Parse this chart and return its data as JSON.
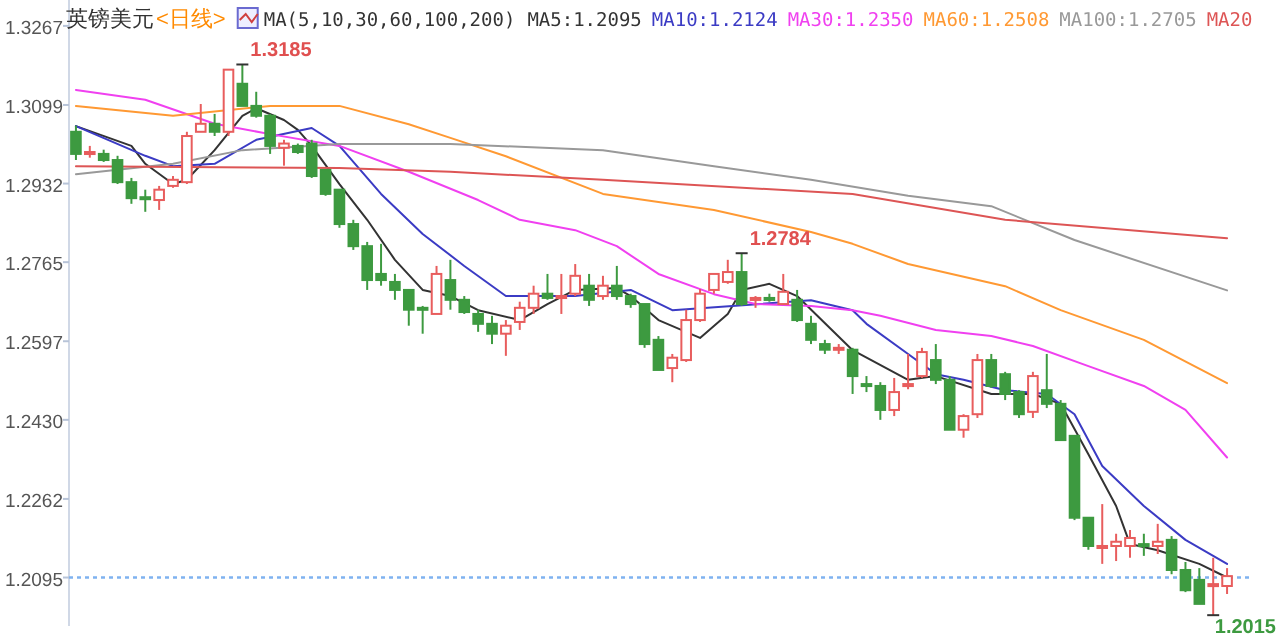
{
  "chart_data": {
    "type": "candlestick",
    "title": "英镑美元",
    "subtitle": "<日线>",
    "annotations": [
      "MA(5,10,30,60,100,200)",
      "1.3185",
      "1.2784",
      "1.2015"
    ],
    "categories": [
      null,
      null,
      null,
      null,
      null,
      null,
      null,
      null,
      null,
      null,
      null,
      null,
      null,
      null,
      null,
      null,
      null,
      null,
      null,
      null,
      null,
      null,
      null,
      null,
      null,
      null,
      null,
      null,
      null,
      null,
      null,
      null,
      null,
      null,
      null,
      null,
      null,
      null,
      null,
      null,
      null,
      null,
      null,
      null,
      null,
      null,
      null,
      null,
      null,
      null,
      null,
      null,
      null,
      null,
      null,
      null,
      null,
      null,
      null,
      null,
      null,
      null,
      null,
      null,
      null,
      null,
      null,
      null,
      null,
      null,
      null,
      null,
      null,
      null,
      null,
      null,
      null,
      null,
      null,
      null,
      null,
      null,
      null,
      null
    ],
    "ohlc": [
      [
        1.3042,
        1.3055,
        1.2982,
        1.2995
      ],
      [
        1.2995,
        1.3012,
        1.2987,
        1.2999
      ],
      [
        1.2995,
        1.3004,
        1.2978,
        1.2982
      ],
      [
        1.2982,
        1.2991,
        1.2931,
        1.2935
      ],
      [
        1.2935,
        1.2944,
        1.2889,
        1.2901
      ],
      [
        1.2903,
        1.2919,
        1.2872,
        1.2899
      ],
      [
        1.2897,
        1.2927,
        1.2876,
        1.2919
      ],
      [
        1.2927,
        1.2948,
        1.2923,
        1.294
      ],
      [
        1.2935,
        1.3042,
        1.2931,
        1.3033
      ],
      [
        1.3042,
        1.3101,
        1.3042,
        1.3059
      ],
      [
        1.3059,
        1.308,
        1.3033,
        1.3042
      ],
      [
        1.3042,
        1.3174,
        1.3033,
        1.3174
      ],
      [
        1.3144,
        1.3185,
        1.3097,
        1.3097
      ],
      [
        1.3097,
        1.3127,
        1.3072,
        1.3076
      ],
      [
        1.3076,
        1.308,
        1.2995,
        1.3012
      ],
      [
        1.3008,
        1.3025,
        1.297,
        1.3017
      ],
      [
        1.3012,
        1.3017,
        1.2995,
        1.2999
      ],
      [
        1.3017,
        1.3025,
        1.2944,
        1.2948
      ],
      [
        1.2961,
        1.2961,
        1.2906,
        1.291
      ],
      [
        1.2919,
        1.2919,
        1.2838,
        1.2846
      ],
      [
        1.2846,
        1.2855,
        1.2791,
        1.2799
      ],
      [
        1.2799,
        1.2808,
        1.2706,
        1.2727
      ],
      [
        1.274,
        1.2804,
        1.2715,
        1.2727
      ],
      [
        1.2723,
        1.274,
        1.2685,
        1.2706
      ],
      [
        1.2706,
        1.2706,
        1.263,
        1.2664
      ],
      [
        1.2668,
        1.2672,
        1.2613,
        1.2664
      ],
      [
        1.2655,
        1.2757,
        1.2655,
        1.274
      ],
      [
        1.2727,
        1.277,
        1.2664,
        1.2685
      ],
      [
        1.2685,
        1.2693,
        1.2655,
        1.2659
      ],
      [
        1.2655,
        1.2664,
        1.2617,
        1.2634
      ],
      [
        1.2634,
        1.2651,
        1.2591,
        1.2613
      ],
      [
        1.2613,
        1.2642,
        1.2566,
        1.263
      ],
      [
        1.2638,
        1.2681,
        1.2621,
        1.2668
      ],
      [
        1.2668,
        1.2715,
        1.2655,
        1.2698
      ],
      [
        1.2698,
        1.274,
        1.2685,
        1.2689
      ],
      [
        1.2689,
        1.274,
        1.2655,
        1.2693
      ],
      [
        1.2698,
        1.2761,
        1.2693,
        1.2736
      ],
      [
        1.2715,
        1.274,
        1.2672,
        1.2685
      ],
      [
        1.2693,
        1.2736,
        1.2685,
        1.2715
      ],
      [
        1.2715,
        1.2757,
        1.2685,
        1.2693
      ],
      [
        1.2693,
        1.2698,
        1.2668,
        1.2676
      ],
      [
        1.2676,
        1.2676,
        1.2583,
        1.2591
      ],
      [
        1.26,
        1.2608,
        1.2536,
        1.2536
      ],
      [
        1.254,
        1.257,
        1.251,
        1.2562
      ],
      [
        1.2557,
        1.2664,
        1.2553,
        1.2642
      ],
      [
        1.2642,
        1.2708,
        1.2638,
        1.2698
      ],
      [
        1.2706,
        1.274,
        1.2698,
        1.274
      ],
      [
        1.2723,
        1.277,
        1.2719,
        1.2744
      ],
      [
        1.2744,
        1.2784,
        1.2672,
        1.2676
      ],
      [
        1.2685,
        1.2693,
        1.2668,
        1.2689
      ],
      [
        1.2689,
        1.2698,
        1.2681,
        1.2685
      ],
      [
        1.2676,
        1.274,
        1.2676,
        1.2702
      ],
      [
        1.2685,
        1.2706,
        1.2638,
        1.2642
      ],
      [
        1.2634,
        1.2651,
        1.2591,
        1.26
      ],
      [
        1.2591,
        1.26,
        1.257,
        1.2579
      ],
      [
        1.2579,
        1.2591,
        1.257,
        1.2583
      ],
      [
        1.2579,
        1.2583,
        1.2485,
        1.2523
      ],
      [
        1.2506,
        1.2523,
        1.2489,
        1.2502
      ],
      [
        1.2502,
        1.251,
        1.243,
        1.2451
      ],
      [
        1.2451,
        1.2519,
        1.2438,
        1.2489
      ],
      [
        1.2502,
        1.257,
        1.2495,
        1.2506
      ],
      [
        1.2523,
        1.2583,
        1.2519,
        1.2574
      ],
      [
        1.2557,
        1.2591,
        1.2506,
        1.2515
      ],
      [
        1.2515,
        1.2523,
        1.2409,
        1.2409
      ],
      [
        1.2409,
        1.2442,
        1.2392,
        1.2438
      ],
      [
        1.2442,
        1.257,
        1.2434,
        1.2557
      ],
      [
        1.2557,
        1.257,
        1.2498,
        1.2502
      ],
      [
        1.2527,
        1.2532,
        1.2472,
        1.2485
      ],
      [
        1.2489,
        1.2493,
        1.2434,
        1.2442
      ],
      [
        1.2447,
        1.2532,
        1.2434,
        1.2523
      ],
      [
        1.2493,
        1.257,
        1.2455,
        1.2464
      ],
      [
        1.2464,
        1.2472,
        1.2387,
        1.2387
      ],
      [
        1.2396,
        1.2396,
        1.2217,
        1.2222
      ],
      [
        1.2222,
        1.2222,
        1.2154,
        1.2162
      ],
      [
        1.2158,
        1.2251,
        1.2124,
        1.2162
      ],
      [
        1.2162,
        1.2188,
        1.213,
        1.2171
      ],
      [
        1.2162,
        1.2196,
        1.2137,
        1.2179
      ],
      [
        1.2166,
        1.2188,
        1.2141,
        1.2162
      ],
      [
        1.2162,
        1.2209,
        1.2145,
        1.2171
      ],
      [
        1.2175,
        1.2183,
        1.2102,
        1.2111
      ],
      [
        1.2111,
        1.2128,
        1.2064,
        1.2068
      ],
      [
        1.209,
        1.2115,
        1.2039,
        1.2039
      ],
      [
        1.2077,
        1.2137,
        1.2015,
        1.2081
      ],
      [
        1.2077,
        1.2115,
        1.206,
        1.2098
      ]
    ],
    "colors": [
      "#3d9a40",
      "#e85d5d",
      "#3d9a40",
      "#3d9a40",
      "#3d9a40",
      "#3d9a40",
      "#e85d5d",
      "#e85d5d",
      "#e85d5d",
      "#e85d5d",
      "#3d9a40",
      "#e85d5d",
      "#3d9a40",
      "#3d9a40",
      "#3d9a40",
      "#e85d5d",
      "#3d9a40",
      "#3d9a40",
      "#3d9a40",
      "#3d9a40",
      "#3d9a40",
      "#3d9a40",
      "#3d9a40",
      "#3d9a40",
      "#3d9a40",
      "#3d9a40",
      "#e85d5d",
      "#3d9a40",
      "#3d9a40",
      "#3d9a40",
      "#3d9a40",
      "#e85d5d",
      "#e85d5d",
      "#e85d5d",
      "#3d9a40",
      "#e85d5d",
      "#e85d5d",
      "#3d9a40",
      "#e85d5d",
      "#3d9a40",
      "#3d9a40",
      "#3d9a40",
      "#3d9a40",
      "#e85d5d",
      "#e85d5d",
      "#e85d5d",
      "#e85d5d",
      "#e85d5d",
      "#3d9a40",
      "#e85d5d",
      "#3d9a40",
      "#e85d5d",
      "#3d9a40",
      "#3d9a40",
      "#3d9a40",
      "#e85d5d",
      "#3d9a40",
      "#3d9a40",
      "#3d9a40",
      "#e85d5d",
      "#e85d5d",
      "#e85d5d",
      "#3d9a40",
      "#3d9a40",
      "#e85d5d",
      "#e85d5d",
      "#3d9a40",
      "#3d9a40",
      "#3d9a40",
      "#e85d5d",
      "#3d9a40",
      "#3d9a40",
      "#3d9a40",
      "#3d9a40",
      "#e85d5d",
      "#e85d5d",
      "#e85d5d",
      "#3d9a40",
      "#e85d5d",
      "#3d9a40",
      "#3d9a40",
      "#3d9a40",
      "#e85d5d",
      "#e85d5d"
    ],
    "series": [
      {
        "name": "MA5:1.2095",
        "type": "line",
        "color": "#333333",
        "values": [
          1.3054,
          null,
          null,
          null,
          1.3012,
          1.2974,
          null,
          1.2931,
          1.294,
          null,
          1.3003,
          null,
          1.3076,
          1.3092,
          null,
          1.3067,
          1.3046,
          1.3012,
          null,
          1.2931,
          null,
          1.2855,
          null,
          1.277,
          null,
          1.2706,
          null,
          1.2693,
          null,
          1.2663,
          null,
          null,
          1.2642,
          null,
          1.2676,
          null,
          1.2706,
          null,
          null,
          1.271,
          1.2693,
          null,
          1.2642,
          null,
          null,
          1.2604,
          null,
          1.2655,
          1.2706,
          null,
          1.2719,
          null,
          1.2693,
          null,
          null,
          null,
          1.2578,
          null,
          null,
          null,
          1.2515,
          null,
          1.2523,
          null,
          null,
          null,
          1.2485,
          null,
          null,
          1.2485,
          null,
          1.2464,
          null,
          1.2357,
          null,
          1.2247,
          1.2166,
          null,
          1.2153,
          null,
          null,
          1.2124,
          null,
          1.2095
        ]
      },
      {
        "name": "MA10:1.2124",
        "type": "line",
        "color": "#3b3bc4",
        "values": [
          1.3054,
          null,
          null,
          null,
          null,
          1.2991,
          null,
          1.2969,
          null,
          null,
          1.2974,
          null,
          null,
          1.3025,
          null,
          null,
          null,
          1.305,
          null,
          1.3012,
          null,
          null,
          1.291,
          null,
          null,
          1.2825,
          null,
          null,
          1.2757,
          null,
          null,
          1.2693,
          null,
          null,
          null,
          null,
          1.2693,
          null,
          null,
          null,
          1.2706,
          null,
          null,
          1.2663,
          null,
          null,
          null,
          null,
          null,
          null,
          null,
          null,
          null,
          1.2684,
          null,
          null,
          1.2663,
          1.2634,
          null,
          null,
          1.257,
          null,
          1.2527,
          null,
          1.2515,
          null,
          null,
          1.2493,
          null,
          null,
          1.2485,
          null,
          1.2442,
          null,
          1.2332,
          null,
          null,
          1.2247,
          null,
          null,
          1.2175,
          null,
          1.2141,
          1.2124
        ]
      },
      {
        "name": "MA30:1.2350",
        "type": "line",
        "color": "#f040f0",
        "values": [
          1.3131,
          null,
          null,
          null,
          null,
          1.311,
          null,
          null,
          null,
          null,
          1.3059,
          null,
          null,
          null,
          1.3037,
          null,
          null,
          null,
          null,
          1.3012,
          null,
          null,
          null,
          null,
          1.2957,
          null,
          null,
          null,
          null,
          1.2897,
          null,
          null,
          1.2855,
          null,
          null,
          null,
          1.2833,
          null,
          null,
          1.2799,
          null,
          null,
          1.274,
          null,
          null,
          null,
          1.2697,
          null,
          null,
          1.2676,
          null,
          null,
          null,
          1.2672,
          null,
          null,
          1.2663,
          null,
          1.2651,
          null,
          null,
          null,
          1.2621,
          null,
          null,
          null,
          1.2608,
          null,
          null,
          1.2587,
          null,
          null,
          null,
          1.2544,
          null,
          null,
          null,
          1.2502,
          null,
          null,
          1.2451,
          null,
          null,
          1.235
        ]
      },
      {
        "name": "MA60:1.2508",
        "type": "line",
        "color": "#ff9933",
        "values": [
          1.3097,
          null,
          null,
          null,
          null,
          null,
          null,
          1.3076,
          null,
          null,
          null,
          null,
          null,
          null,
          1.3097,
          null,
          null,
          null,
          null,
          1.3097,
          null,
          null,
          null,
          null,
          1.3058,
          null,
          null,
          1.3029,
          null,
          null,
          null,
          1.299,
          null,
          null,
          null,
          null,
          null,
          null,
          1.291,
          null,
          null,
          null,
          null,
          null,
          null,
          null,
          1.2876,
          null,
          null,
          null,
          null,
          null,
          null,
          1.2829,
          null,
          null,
          1.2804,
          null,
          null,
          null,
          1.2761,
          null,
          null,
          null,
          null,
          null,
          null,
          1.2714,
          null,
          null,
          null,
          1.2663,
          null,
          null,
          null,
          null,
          null,
          1.26,
          null,
          null,
          null,
          null,
          null,
          1.2508
        ]
      },
      {
        "name": "MA100:1.2705",
        "type": "line",
        "color": "#999999",
        "values": [
          1.2952,
          null,
          null,
          null,
          null,
          null,
          null,
          1.2974,
          null,
          null,
          null,
          null,
          1.3003,
          null,
          null,
          null,
          null,
          null,
          null,
          1.3016,
          null,
          null,
          null,
          null,
          null,
          null,
          null,
          1.3016,
          null,
          null,
          null,
          null,
          null,
          null,
          null,
          null,
          null,
          null,
          1.3003,
          null,
          null,
          null,
          null,
          null,
          null,
          null,
          1.2969,
          null,
          null,
          null,
          null,
          null,
          null,
          1.294,
          null,
          null,
          null,
          null,
          null,
          null,
          1.2906,
          null,
          null,
          null,
          null,
          null,
          1.2884,
          null,
          null,
          null,
          null,
          null,
          1.2812,
          null,
          null,
          null,
          null,
          null,
          null,
          null,
          null,
          null,
          null,
          1.2705
        ]
      },
      {
        "name": "MA20",
        "type": "line",
        "color": "#dd5555",
        "values": [
          1.2969,
          null,
          null,
          null,
          null,
          null,
          null,
          null,
          null,
          null,
          null,
          null,
          null,
          null,
          null,
          null,
          null,
          null,
          null,
          1.2965,
          null,
          null,
          null,
          null,
          null,
          null,
          null,
          1.2957,
          null,
          null,
          null,
          null,
          null,
          null,
          null,
          null,
          null,
          null,
          1.294,
          null,
          null,
          null,
          null,
          null,
          null,
          null,
          null,
          null,
          null,
          null,
          null,
          null,
          null,
          null,
          null,
          null,
          1.291,
          null,
          null,
          null,
          null,
          null,
          null,
          null,
          null,
          null,
          null,
          1.2855,
          null,
          null,
          null,
          null,
          null,
          null,
          null,
          null,
          null,
          null,
          null,
          null,
          null,
          null,
          null,
          1.2816
        ]
      }
    ],
    "ylim": [
      1.1992,
      1.3322
    ],
    "yticks": [
      1.3267,
      1.3099,
      1.2932,
      1.2765,
      1.2597,
      {
        "value": 1.243,
        "label": "1.2430"
      },
      1.2262,
      1.2095
    ],
    "ref_lines": [
      {
        "axis": "y",
        "value": 1.2095,
        "color": "#7fb2f0",
        "line_style": "dotted"
      }
    ],
    "legend": "top"
  }
}
